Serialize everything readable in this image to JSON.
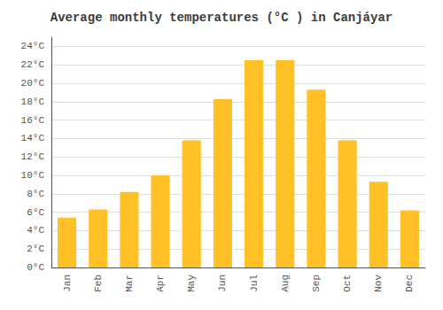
{
  "chart_data": {
    "type": "bar",
    "title": "Average monthly temperatures (°C ) in Canjáyar",
    "categories": [
      "Jan",
      "Feb",
      "Mar",
      "Apr",
      "May",
      "Jun",
      "Jul",
      "Aug",
      "Sep",
      "Oct",
      "Nov",
      "Dec"
    ],
    "values": [
      5.4,
      6.3,
      8.2,
      10.0,
      13.8,
      18.3,
      22.5,
      22.5,
      19.3,
      13.8,
      9.3,
      6.2
    ],
    "color": "#FFC125",
    "ylim": [
      0,
      25
    ],
    "yticks": [
      {
        "value": 0,
        "label": "0°C"
      },
      {
        "value": 2,
        "label": "2°C"
      },
      {
        "value": 4,
        "label": "4°C"
      },
      {
        "value": 6,
        "label": "6°C"
      },
      {
        "value": 8,
        "label": "8°C"
      },
      {
        "value": 10,
        "label": "10°C"
      },
      {
        "value": 12,
        "label": "12°C"
      },
      {
        "value": 14,
        "label": "14°C"
      },
      {
        "value": 16,
        "label": "16°C"
      },
      {
        "value": 18,
        "label": "18°C"
      },
      {
        "value": 20,
        "label": "20°C"
      },
      {
        "value": 22,
        "label": "22°C"
      },
      {
        "value": 24,
        "label": "24°C"
      }
    ],
    "grid": true
  }
}
